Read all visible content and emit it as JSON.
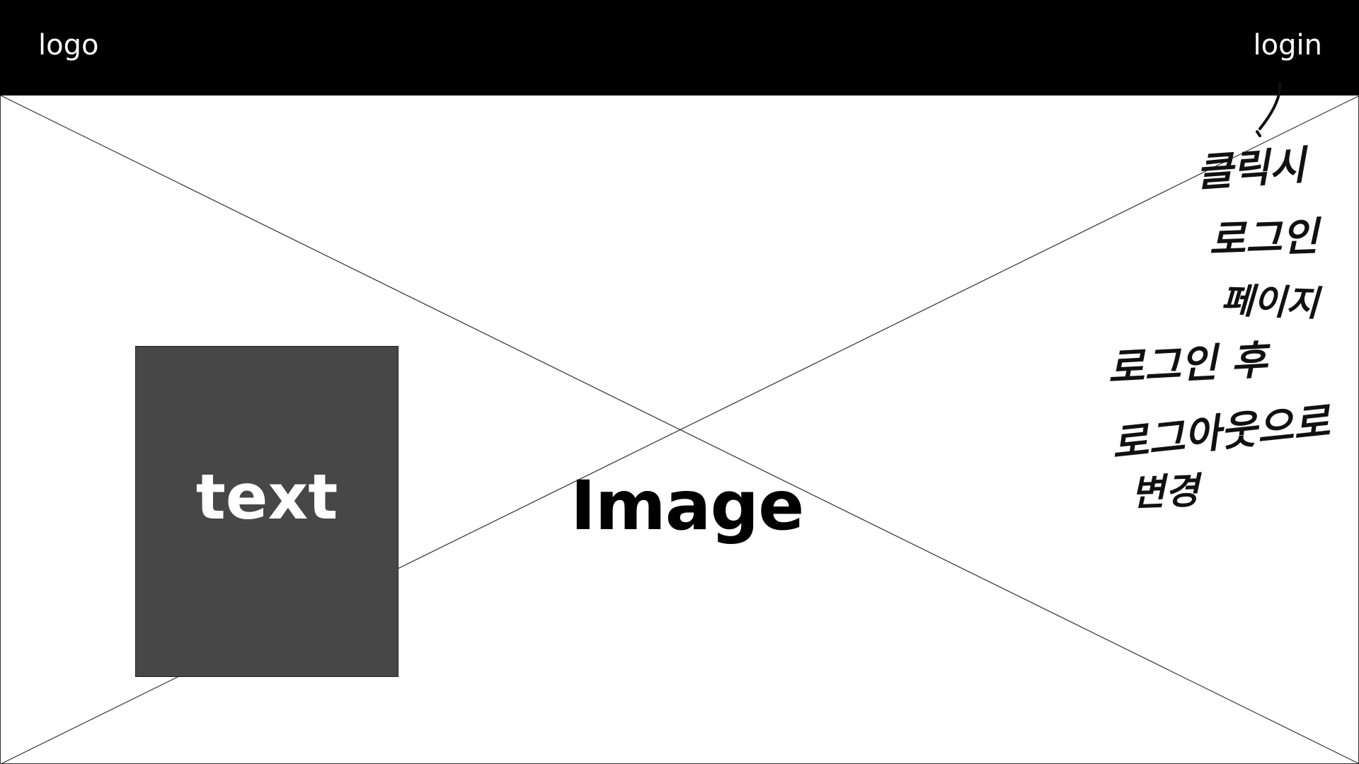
{
  "header": {
    "logo": "logo",
    "login": "login"
  },
  "hero": {
    "label": "Image",
    "text_box_label": "text"
  },
  "annotation": {
    "lines": [
      "클릭시",
      "로그인",
      "페이지",
      "로그인 후",
      "로그아웃으로",
      "변경"
    ]
  },
  "colors": {
    "header_bg": "#000000",
    "text_box_bg": "#474747",
    "hero_bg": "#ffffff"
  }
}
